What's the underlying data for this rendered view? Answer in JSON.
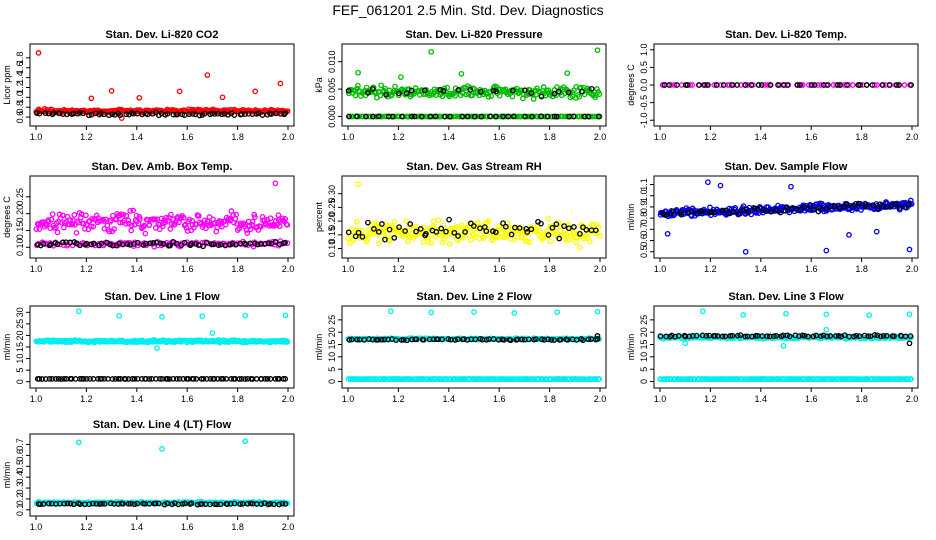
{
  "title": "FEF_061201  2.5 Min. Std. Dev. Diagnostics",
  "chart_data": [
    {
      "type": "scatter",
      "title": "Stan. Dev. Li-820 CO2",
      "ylabel": "Licor ppm",
      "xlim": [
        1.0,
        2.0
      ],
      "ylim": [
        0.5,
        2.0
      ],
      "xticks": [
        1.0,
        1.2,
        1.4,
        1.6,
        1.8,
        2.0
      ],
      "xtick_labels": [
        "1.0",
        "1.2",
        "1.4",
        "1.6",
        "1.8",
        "2.0"
      ],
      "yticks": [
        0.6,
        0.8,
        1.0,
        1.2,
        1.4,
        1.6,
        1.8
      ],
      "ytick_labels": [
        "0.6",
        "0.8",
        "1.0",
        "1.2",
        "1.4",
        "1.6",
        "1.8"
      ],
      "series": [
        {
          "name": "main",
          "color": "#ff0000",
          "base": 0.72,
          "spread": 0.05,
          "count": 260,
          "seed": 11,
          "outliers": [
            [
              1.01,
              1.9
            ],
            [
              1.3,
              1.13
            ],
            [
              1.57,
              1.12
            ],
            [
              1.68,
              1.45
            ],
            [
              1.87,
              1.12
            ],
            [
              1.97,
              1.28
            ],
            [
              1.22,
              0.98
            ],
            [
              1.41,
              0.99
            ],
            [
              1.74,
              1.0
            ],
            [
              1.34,
              0.58
            ]
          ]
        },
        {
          "name": "black",
          "color": "#000000",
          "base": 0.66,
          "spread": 0.04,
          "count": 75,
          "seed": 12,
          "outliers": []
        }
      ]
    },
    {
      "type": "scatter",
      "title": "Stan. Dev. Li-820 Pressure",
      "ylabel": "kPa",
      "xlim": [
        1.0,
        2.0
      ],
      "ylim": [
        -0.001,
        0.0125
      ],
      "xticks": [
        1.0,
        1.2,
        1.4,
        1.6,
        1.8,
        2.0
      ],
      "xtick_labels": [
        "1.0",
        "1.2",
        "1.4",
        "1.6",
        "1.8",
        "2.0"
      ],
      "yticks": [
        0.0,
        0.005,
        0.01
      ],
      "ytick_labels": [
        "0.000",
        "0.005",
        "0.010"
      ],
      "series": [
        {
          "name": "main",
          "color": "#00bb00",
          "base": 0.0045,
          "spread": 0.0016,
          "count": 220,
          "seed": 21,
          "outliers": [
            [
              1.33,
              0.0118
            ],
            [
              1.99,
              0.0121
            ],
            [
              1.04,
              0.008
            ],
            [
              1.21,
              0.0072
            ],
            [
              1.45,
              0.0078
            ],
            [
              1.87,
              0.0079
            ]
          ]
        },
        {
          "name": "zero",
          "color": "#00bb00",
          "base": 0.0,
          "spread": 3e-05,
          "count": 120,
          "seed": 22,
          "outliers": []
        },
        {
          "name": "black",
          "color": "#000000",
          "base": 0.0045,
          "spread": 0.0014,
          "count": 24,
          "seed": 23,
          "outliers": []
        },
        {
          "name": "black-zero",
          "color": "#000000",
          "base": 0.0,
          "spread": 3e-05,
          "count": 35,
          "seed": 24,
          "outliers": []
        }
      ]
    },
    {
      "type": "scatter",
      "title": "Stan. Dev. Li-820 Temp.",
      "ylabel": "degrees C",
      "xlim": [
        1.0,
        2.0
      ],
      "ylim": [
        -1.05,
        1.05
      ],
      "xticks": [
        1.0,
        1.2,
        1.4,
        1.6,
        1.8,
        2.0
      ],
      "xtick_labels": [
        "1.0",
        "1.2",
        "1.4",
        "1.6",
        "1.8",
        "2.0"
      ],
      "yticks": [
        -1.0,
        -0.5,
        0.0,
        0.5,
        1.0
      ],
      "ytick_labels": [
        "-1.0",
        "-0.5",
        "0.0",
        "0.5",
        "1.0"
      ],
      "series": [
        {
          "name": "main",
          "color": "#ff00ff",
          "base": 0.0,
          "spread": 0.0,
          "count": 55,
          "seed": 31,
          "outliers": []
        },
        {
          "name": "black",
          "color": "#000000",
          "base": 0.0,
          "spread": 0.0,
          "count": 38,
          "seed": 32,
          "outliers": []
        }
      ]
    },
    {
      "type": "scatter",
      "title": "Stan. Dev. Amb. Box Temp.",
      "ylabel": "degrees C",
      "xlim": [
        1.0,
        2.0
      ],
      "ylim": [
        0.08,
        0.3
      ],
      "xticks": [
        1.0,
        1.2,
        1.4,
        1.6,
        1.8,
        2.0
      ],
      "xtick_labels": [
        "1.0",
        "1.2",
        "1.4",
        "1.6",
        "1.8",
        "2.0"
      ],
      "yticks": [
        0.1,
        0.15,
        0.2,
        0.25
      ],
      "ytick_labels": [
        "0.10",
        "0.15",
        "0.20",
        "0.25"
      ],
      "series": [
        {
          "name": "main",
          "color": "#ff00ff",
          "base": 0.175,
          "spread": 0.04,
          "count": 240,
          "seed": 41,
          "outliers": [
            [
              1.95,
              0.29
            ]
          ]
        },
        {
          "name": "low",
          "color": "#ff00ff",
          "base": 0.11,
          "spread": 0.01,
          "count": 120,
          "seed": 42,
          "outliers": []
        },
        {
          "name": "black",
          "color": "#000000",
          "base": 0.11,
          "spread": 0.009,
          "count": 70,
          "seed": 43,
          "outliers": []
        }
      ]
    },
    {
      "type": "scatter",
      "title": "Stan. Dev. Gas Stream RH",
      "ylabel": "percent",
      "xlim": [
        1.0,
        2.0
      ],
      "ylim": [
        0.08,
        0.35
      ],
      "xticks": [
        1.0,
        1.2,
        1.4,
        1.6,
        1.8,
        2.0
      ],
      "xtick_labels": [
        "1.0",
        "1.2",
        "1.4",
        "1.6",
        "1.8",
        "2.0"
      ],
      "yticks": [
        0.1,
        0.15,
        0.2,
        0.25,
        0.3
      ],
      "ytick_labels": [
        "0.10",
        "0.15",
        "0.20",
        "0.25",
        "0.30"
      ],
      "series": [
        {
          "name": "main",
          "color": "#ffff00",
          "base": 0.16,
          "spread": 0.06,
          "count": 280,
          "seed": 51,
          "outliers": [
            [
              1.04,
              0.335
            ]
          ]
        },
        {
          "name": "black",
          "color": "#000000",
          "base": 0.17,
          "spread": 0.05,
          "count": 55,
          "seed": 52,
          "outliers": []
        }
      ]
    },
    {
      "type": "scatter",
      "title": "Stan. Dev. Sample Flow",
      "ylabel": "ml/min",
      "xlim": [
        1.0,
        2.0
      ],
      "ylim": [
        0.48,
        1.14
      ],
      "xticks": [
        1.0,
        1.2,
        1.4,
        1.6,
        1.8,
        2.0
      ],
      "xtick_labels": [
        "1.0",
        "1.2",
        "1.4",
        "1.6",
        "1.8",
        "2.0"
      ],
      "yticks": [
        0.5,
        0.6,
        0.7,
        0.8,
        0.9,
        1.0,
        1.1
      ],
      "ytick_labels": [
        "0.5",
        "0.6",
        "0.7",
        "0.8",
        "0.9",
        "1.0",
        "1.1"
      ],
      "series": [
        {
          "name": "main",
          "color": "#0000ee",
          "base": 0.88,
          "spread": 0.05,
          "count": 300,
          "seed": 61,
          "trend": 0.08,
          "outliers": [
            [
              1.19,
              1.12
            ],
            [
              1.52,
              1.08
            ],
            [
              1.34,
              0.5
            ],
            [
              1.66,
              0.51
            ],
            [
              1.99,
              0.52
            ],
            [
              1.75,
              0.65
            ],
            [
              1.03,
              0.66
            ],
            [
              1.86,
              0.68
            ],
            [
              1.24,
              1.09
            ]
          ]
        },
        {
          "name": "black",
          "color": "#000000",
          "base": 0.88,
          "spread": 0.04,
          "count": 60,
          "seed": 62,
          "trend": 0.08,
          "outliers": []
        }
      ]
    },
    {
      "type": "scatter",
      "title": "Stan. Dev. Line 1 Flow",
      "ylabel": "ml/min",
      "xlim": [
        1.0,
        2.0
      ],
      "ylim": [
        -1,
        31
      ],
      "xticks": [
        1.0,
        1.2,
        1.4,
        1.6,
        1.8,
        2.0
      ],
      "xtick_labels": [
        "1.0",
        "1.2",
        "1.4",
        "1.6",
        "1.8",
        "2.0"
      ],
      "yticks": [
        0,
        5,
        10,
        15,
        20,
        25,
        30
      ],
      "ytick_labels": [
        "0",
        "5",
        "10",
        "15",
        "20",
        "25",
        "30"
      ],
      "series": [
        {
          "name": "main",
          "color": "#00eeee",
          "base": 17.5,
          "spread": 0.7,
          "count": 300,
          "seed": 71,
          "outliers": [
            [
              1.17,
              30.5
            ],
            [
              1.33,
              28.5
            ],
            [
              1.5,
              28.0
            ],
            [
              1.66,
              28.3
            ],
            [
              1.83,
              28.6
            ],
            [
              1.99,
              28.7
            ],
            [
              1.48,
              14.5
            ],
            [
              1.7,
              21.0
            ]
          ]
        },
        {
          "name": "black",
          "color": "#000000",
          "base": 1.2,
          "spread": 0.05,
          "count": 85,
          "seed": 72,
          "outliers": []
        }
      ]
    },
    {
      "type": "scatter",
      "title": "Stan. Dev. Line 2 Flow",
      "ylabel": "ml/min",
      "xlim": [
        1.0,
        2.0
      ],
      "ylim": [
        -1,
        29
      ],
      "xticks": [
        1.0,
        1.2,
        1.4,
        1.6,
        1.8,
        2.0
      ],
      "xtick_labels": [
        "1.0",
        "1.2",
        "1.4",
        "1.6",
        "1.8",
        "2.0"
      ],
      "yticks": [
        0,
        5,
        10,
        15,
        20,
        25
      ],
      "ytick_labels": [
        "0",
        "5",
        "10",
        "15",
        "20",
        "25"
      ],
      "series": [
        {
          "name": "main",
          "color": "#00eeee",
          "base": 17.3,
          "spread": 0.4,
          "count": 200,
          "seed": 81,
          "outliers": [
            [
              1.17,
              28.5
            ],
            [
              1.33,
              28.0
            ],
            [
              1.5,
              28.2
            ],
            [
              1.66,
              27.8
            ],
            [
              1.83,
              28.1
            ],
            [
              1.99,
              28.3
            ]
          ]
        },
        {
          "name": "zero",
          "color": "#00eeee",
          "base": 1.0,
          "spread": 0.05,
          "count": 180,
          "seed": 82,
          "outliers": []
        },
        {
          "name": "black",
          "color": "#000000",
          "base": 17.0,
          "spread": 0.4,
          "count": 70,
          "seed": 83,
          "outliers": [
            [
              1.99,
              18.5
            ]
          ]
        }
      ]
    },
    {
      "type": "scatter",
      "title": "Stan. Dev. Line 3 Flow",
      "ylabel": "ml/min",
      "xlim": [
        1.0,
        2.0
      ],
      "ylim": [
        -1,
        29
      ],
      "xticks": [
        1.0,
        1.2,
        1.4,
        1.6,
        1.8,
        2.0
      ],
      "xtick_labels": [
        "1.0",
        "1.2",
        "1.4",
        "1.6",
        "1.8",
        "2.0"
      ],
      "yticks": [
        0,
        5,
        10,
        15,
        20,
        25
      ],
      "ytick_labels": [
        "0",
        "5",
        "10",
        "15",
        "20",
        "25"
      ],
      "series": [
        {
          "name": "main",
          "color": "#00eeee",
          "base": 17.8,
          "spread": 0.7,
          "count": 200,
          "seed": 91,
          "outliers": [
            [
              1.17,
              28.5
            ],
            [
              1.33,
              27.0
            ],
            [
              1.5,
              27.5
            ],
            [
              1.66,
              27.2
            ],
            [
              1.83,
              26.9
            ],
            [
              1.99,
              27.3
            ],
            [
              1.49,
              14.5
            ],
            [
              1.66,
              21.0
            ],
            [
              1.1,
              15.5
            ]
          ]
        },
        {
          "name": "zero",
          "color": "#00eeee",
          "base": 1.0,
          "spread": 0.05,
          "count": 180,
          "seed": 92,
          "outliers": []
        },
        {
          "name": "black",
          "color": "#000000",
          "base": 18.5,
          "spread": 0.5,
          "count": 70,
          "seed": 93,
          "outliers": [
            [
              1.99,
              15.5
            ]
          ]
        }
      ]
    },
    {
      "type": "scatter",
      "title": "Stan. Dev. Line 4 (LT) Flow",
      "ylabel": "ml/min",
      "xlim": [
        1.0,
        2.0
      ],
      "ylim": [
        0.08,
        0.76
      ],
      "xticks": [
        1.0,
        1.2,
        1.4,
        1.6,
        1.8,
        2.0
      ],
      "xtick_labels": [
        "1.0",
        "1.2",
        "1.4",
        "1.6",
        "1.8",
        "2.0"
      ],
      "yticks": [
        0.1,
        0.2,
        0.3,
        0.4,
        0.5,
        0.6,
        0.7
      ],
      "ytick_labels": [
        "0.1",
        "0.2",
        "0.3",
        "0.4",
        "0.5",
        "0.6",
        "0.7"
      ],
      "series": [
        {
          "name": "main",
          "color": "#00eeee",
          "base": 0.165,
          "spread": 0.012,
          "count": 280,
          "seed": 101,
          "outliers": [
            [
              1.17,
              0.72
            ],
            [
              1.5,
              0.66
            ],
            [
              1.83,
              0.73
            ]
          ]
        },
        {
          "name": "black",
          "color": "#000000",
          "base": 0.155,
          "spread": 0.01,
          "count": 70,
          "seed": 102,
          "outliers": []
        }
      ]
    }
  ]
}
